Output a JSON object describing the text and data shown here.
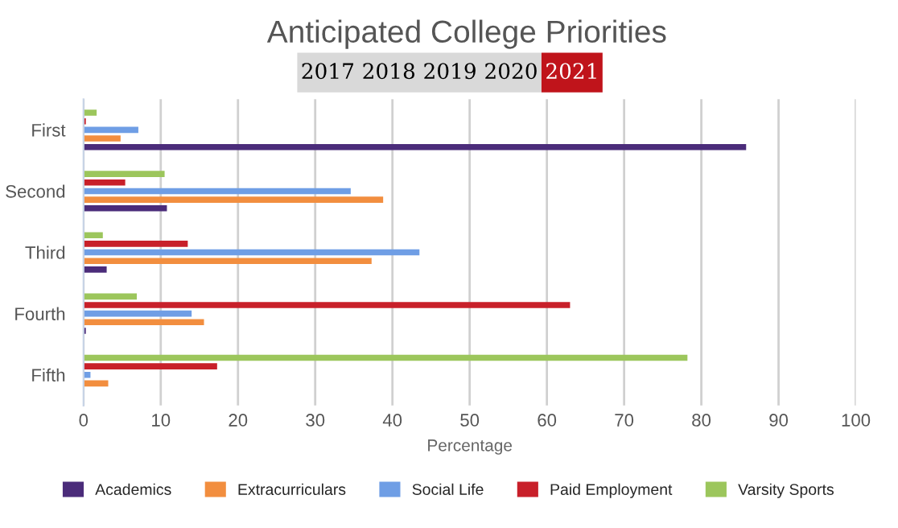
{
  "chart_data": {
    "type": "bar",
    "orientation": "horizontal",
    "title": "Anticipated College Priorities",
    "xlabel": "Percentage",
    "annotations": [
      "2017",
      "2018",
      "2019",
      "2020",
      "2021"
    ],
    "categories": [
      "First",
      "Second",
      "Third",
      "Fourth",
      "Fifth"
    ],
    "series": [
      {
        "name": "Academics",
        "color": "#4b2c7a",
        "values": [
          85.8,
          10.8,
          3.0,
          0.3,
          0
        ]
      },
      {
        "name": "Extracurriculars",
        "color": "#f28e3f",
        "values": [
          4.8,
          38.8,
          37.3,
          15.6,
          3.2
        ]
      },
      {
        "name": "Social Life",
        "color": "#6f9ee5",
        "values": [
          7.1,
          34.6,
          43.5,
          14.0,
          0.9
        ]
      },
      {
        "name": "Paid Employment",
        "color": "#c8202a",
        "values": [
          0.3,
          5.4,
          13.5,
          63.0,
          17.3
        ]
      },
      {
        "name": "Varsity Sports",
        "color": "#9cc65c",
        "values": [
          1.7,
          10.5,
          2.5,
          6.9,
          78.2
        ]
      }
    ],
    "xlim": [
      0,
      100
    ],
    "xticks": [
      0,
      10,
      20,
      30,
      40,
      50,
      60,
      70,
      80,
      90,
      100
    ],
    "grid": "x",
    "legend": "bottom"
  }
}
